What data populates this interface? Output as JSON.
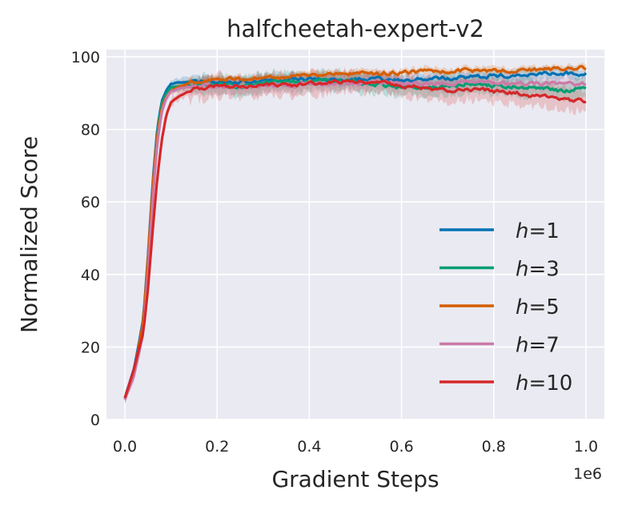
{
  "chart_data": {
    "type": "line",
    "title": "halfcheetah-expert-v2",
    "xlabel": "Gradient Steps",
    "ylabel": "Normalized Score",
    "x_offset_label": "1e6",
    "xlim": [
      -0.04,
      1.04
    ],
    "ylim": [
      0,
      102
    ],
    "xticks": [
      0.0,
      0.2,
      0.4,
      0.6,
      0.8,
      1.0
    ],
    "xtick_labels": [
      "0.0",
      "0.2",
      "0.4",
      "0.6",
      "0.8",
      "1.0"
    ],
    "yticks": [
      0,
      20,
      40,
      60,
      80,
      100
    ],
    "ytick_labels": [
      "0",
      "20",
      "40",
      "60",
      "80",
      "100"
    ],
    "grid": true,
    "background": "#eaeaf2",
    "legend_position": "center-right",
    "series": [
      {
        "name_prefix": "h",
        "name_suffix": "=1",
        "color": "#0072b2",
        "shade": 1.5,
        "x": [
          0.0,
          0.02,
          0.04,
          0.05,
          0.06,
          0.07,
          0.08,
          0.09,
          0.1,
          0.12,
          0.15,
          0.2,
          0.25,
          0.3,
          0.35,
          0.4,
          0.45,
          0.5,
          0.55,
          0.6,
          0.65,
          0.7,
          0.75,
          0.8,
          0.85,
          0.9,
          0.95,
          1.0
        ],
        "y": [
          6,
          14,
          28,
          45,
          65,
          80,
          88,
          91,
          92.5,
          93,
          93,
          93.2,
          93,
          93.5,
          93.8,
          94,
          93.5,
          93.8,
          94,
          93.5,
          94,
          94.2,
          94.5,
          94.8,
          95,
          95.3,
          95.5,
          95.5
        ]
      },
      {
        "name_prefix": "h",
        "name_suffix": "=3",
        "color": "#009e73",
        "shade": 2.5,
        "x": [
          0.0,
          0.02,
          0.04,
          0.05,
          0.06,
          0.07,
          0.08,
          0.09,
          0.1,
          0.12,
          0.15,
          0.2,
          0.25,
          0.3,
          0.35,
          0.4,
          0.45,
          0.5,
          0.55,
          0.6,
          0.65,
          0.7,
          0.75,
          0.8,
          0.85,
          0.9,
          0.95,
          1.0
        ],
        "y": [
          6,
          13,
          26,
          43,
          63,
          79,
          87,
          90,
          91.5,
          92,
          92,
          92.5,
          92,
          92.8,
          93,
          93.2,
          93.5,
          93,
          92.5,
          91,
          91.5,
          92,
          92.5,
          92,
          92,
          91.5,
          90.5,
          92
        ]
      },
      {
        "name_prefix": "h",
        "name_suffix": "=5",
        "color": "#d55e00",
        "shade": 1,
        "x": [
          0.0,
          0.02,
          0.04,
          0.05,
          0.06,
          0.07,
          0.08,
          0.09,
          0.1,
          0.12,
          0.15,
          0.2,
          0.25,
          0.3,
          0.35,
          0.4,
          0.45,
          0.5,
          0.55,
          0.6,
          0.65,
          0.7,
          0.75,
          0.8,
          0.85,
          0.9,
          0.95,
          1.0
        ],
        "y": [
          6,
          13,
          27,
          44,
          64,
          78,
          86,
          89,
          90.5,
          92,
          93,
          94,
          94,
          94.2,
          94.5,
          95,
          95.2,
          95.5,
          95.5,
          95.8,
          96,
          96,
          96.2,
          96.2,
          96.3,
          96.5,
          96.6,
          96.8
        ]
      },
      {
        "name_prefix": "h",
        "name_suffix": "=7",
        "color": "#cc79a7",
        "shade": 2,
        "x": [
          0.0,
          0.02,
          0.04,
          0.05,
          0.06,
          0.07,
          0.08,
          0.09,
          0.1,
          0.12,
          0.15,
          0.2,
          0.25,
          0.3,
          0.35,
          0.4,
          0.45,
          0.5,
          0.55,
          0.6,
          0.65,
          0.7,
          0.75,
          0.8,
          0.85,
          0.9,
          0.95,
          1.0
        ],
        "y": [
          5.5,
          12,
          24,
          40,
          60,
          76,
          85,
          89,
          90.5,
          91.5,
          92,
          92,
          91.8,
          92,
          92.2,
          92.5,
          92.5,
          92.8,
          93,
          92.8,
          93,
          92.5,
          93,
          92.5,
          92.8,
          92.5,
          92.5,
          92.5
        ]
      },
      {
        "name_prefix": "h",
        "name_suffix": "=10",
        "color": "#d62728",
        "shade": 3,
        "x": [
          0.0,
          0.02,
          0.04,
          0.05,
          0.06,
          0.07,
          0.08,
          0.09,
          0.1,
          0.12,
          0.15,
          0.2,
          0.25,
          0.3,
          0.35,
          0.4,
          0.45,
          0.5,
          0.55,
          0.6,
          0.65,
          0.7,
          0.75,
          0.8,
          0.85,
          0.9,
          0.95,
          1.0
        ],
        "y": [
          6,
          14,
          24,
          36,
          52,
          66,
          77,
          84,
          87.5,
          89.5,
          91,
          92,
          92,
          92.5,
          92,
          92.5,
          93,
          93.5,
          93,
          92,
          91.5,
          91,
          91,
          90.5,
          90,
          89,
          88,
          88
        ]
      }
    ]
  }
}
